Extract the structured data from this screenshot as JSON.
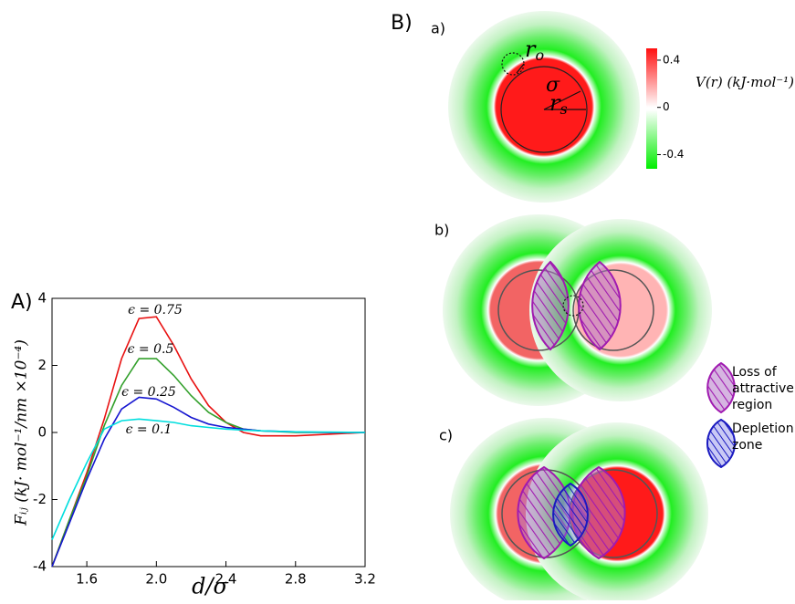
{
  "chart_data": {
    "type": "line",
    "panel_label": "A)",
    "x_label": "d/σ",
    "y_label": "Fᵢⱼ (kJ· mol⁻¹/nm ×10⁻⁴)",
    "x": [
      1.4,
      1.5,
      1.6,
      1.7,
      1.8,
      1.9,
      2.0,
      2.1,
      2.2,
      2.3,
      2.4,
      2.5,
      2.6,
      2.8,
      3.0,
      3.2
    ],
    "series": [
      {
        "name": "ϵ = 0.75",
        "color": "#e81010",
        "values": [
          -4,
          -2.6,
          -1.2,
          0.4,
          2.2,
          3.4,
          3.45,
          2.6,
          1.6,
          0.8,
          0.3,
          0.0,
          -0.1,
          -0.1,
          -0.05,
          0
        ]
      },
      {
        "name": "ϵ = 0.5",
        "color": "#33a02c",
        "values": [
          -4,
          -2.6,
          -1.3,
          0.2,
          1.4,
          2.2,
          2.2,
          1.7,
          1.1,
          0.6,
          0.3,
          0.1,
          0.05,
          0.0,
          0,
          0
        ]
      },
      {
        "name": "ϵ = 0.25",
        "color": "#1515d0",
        "values": [
          -4,
          -2.7,
          -1.4,
          -0.2,
          0.7,
          1.05,
          1.0,
          0.75,
          0.45,
          0.25,
          0.15,
          0.1,
          0.05,
          0.02,
          0.0,
          0
        ]
      },
      {
        "name": "ϵ = 0.1",
        "color": "#00dede",
        "values": [
          -3.2,
          -2.0,
          -0.9,
          0.1,
          0.35,
          0.4,
          0.35,
          0.3,
          0.2,
          0.15,
          0.1,
          0.07,
          0.05,
          0.02,
          0.01,
          0
        ]
      }
    ],
    "xlim": [
      1.4,
      3.2
    ],
    "ylim": [
      -4,
      4
    ],
    "xticks": [
      1.6,
      {
        "value": 2,
        "label": "2.0"
      },
      2.4,
      2.8,
      3.2
    ],
    "yticks": [
      4,
      2,
      0,
      -2,
      -4
    ]
  },
  "figure_b": {
    "label": "B)",
    "sub_labels": [
      "a)",
      "b)",
      "c)"
    ],
    "radius_outer": {
      "base": "r",
      "sub": "o"
    },
    "sigma": "σ",
    "radius_s": {
      "base": "r",
      "sub": "s"
    },
    "colorbar": {
      "label": "V(r) (kJ·mol⁻¹)",
      "lim": [
        -0.52,
        0.5
      ],
      "ticks": [
        0.4,
        0,
        -0.4
      ]
    },
    "legend": [
      {
        "lines": [
          "Loss of",
          "attractive",
          "region"
        ]
      },
      {
        "lines": [
          "Depletion",
          "zone"
        ]
      }
    ]
  }
}
